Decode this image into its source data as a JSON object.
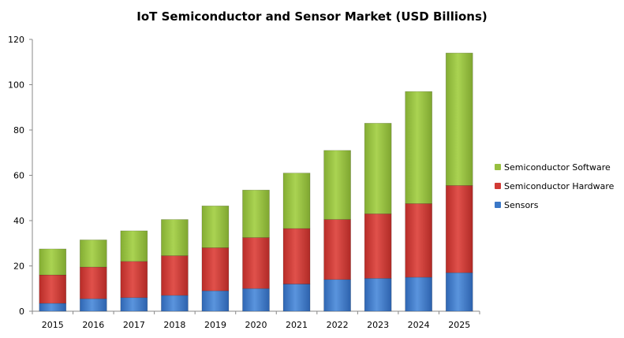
{
  "chart_data": {
    "type": "bar",
    "stacked": true,
    "title": "IoT Semiconductor and Sensor Market (USD Billions)",
    "xlabel": "",
    "ylabel": "",
    "ylim": [
      0,
      120
    ],
    "yticks": [
      0,
      20,
      40,
      60,
      80,
      100,
      120
    ],
    "categories": [
      "2015",
      "2016",
      "2017",
      "2018",
      "2019",
      "2020",
      "2021",
      "2022",
      "2023",
      "2024",
      "2025"
    ],
    "series": [
      {
        "name": "Sensors",
        "color": "#3b78c7",
        "values": [
          3.5,
          5.5,
          6,
          7,
          9,
          10,
          12,
          14,
          14.5,
          15,
          17
        ]
      },
      {
        "name": "Semiconductor Hardware",
        "color": "#d13a35",
        "values": [
          12.5,
          14,
          16,
          17.5,
          19,
          22.5,
          24.5,
          26.5,
          28.5,
          32.5,
          38.5
        ]
      },
      {
        "name": "Semiconductor Software",
        "color": "#97bf3f",
        "values": [
          11.5,
          12,
          13.5,
          16,
          18.5,
          21,
          24.5,
          30.5,
          40,
          49.5,
          58.5
        ]
      }
    ],
    "legend": {
      "position": "right",
      "order": [
        "Semiconductor Software",
        "Semiconductor Hardware",
        "Sensors"
      ]
    },
    "grid": false
  }
}
